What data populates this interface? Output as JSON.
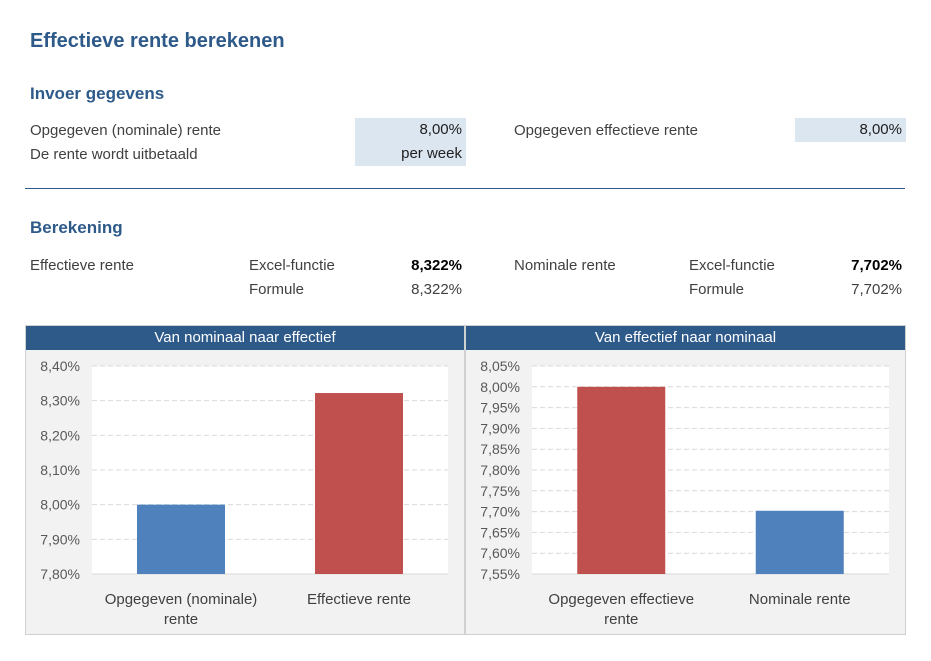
{
  "page": {
    "title": "Effectieve rente berekenen"
  },
  "invoer": {
    "heading": "Invoer gegevens",
    "nominale_label": "Opgegeven (nominale) rente",
    "nominale_value": "8,00%",
    "uitbetaald_label": "De rente wordt uitbetaald",
    "uitbetaald_value": "per week",
    "effectieve_label": "Opgegeven effectieve rente",
    "effectieve_value": "8,00%"
  },
  "berekening": {
    "heading": "Berekening",
    "left": {
      "label": "Effectieve rente",
      "excel_label": "Excel-functie",
      "excel_value": "8,322%",
      "formule_label": "Formule",
      "formule_value": "8,322%"
    },
    "right": {
      "label": "Nominale rente",
      "excel_label": "Excel-functie",
      "excel_value": "7,702%",
      "formule_label": "Formule",
      "formule_value": "7,702%"
    }
  },
  "colors": {
    "accent": "#2e5a8a",
    "bar_blue": "#4f81bd",
    "bar_red": "#c0504d",
    "input_bg": "#dce6f1"
  },
  "chart_data": [
    {
      "type": "bar",
      "title": "Van nominaal naar effectief",
      "categories": [
        "Opgegeven (nominale) rente",
        "Effectieve rente"
      ],
      "category_lines": [
        [
          "Opgegeven (nominale)",
          "rente"
        ],
        [
          "Effectieve rente"
        ]
      ],
      "values": [
        8.0,
        8.322
      ],
      "bar_colors": [
        "#4f81bd",
        "#c0504d"
      ],
      "ylim": [
        7.8,
        8.4
      ],
      "yticks": [
        7.8,
        7.9,
        8.0,
        8.1,
        8.2,
        8.3,
        8.4
      ],
      "ytick_labels": [
        "7,80%",
        "7,90%",
        "8,00%",
        "8,10%",
        "8,20%",
        "8,30%",
        "8,40%"
      ],
      "grid": true,
      "xlabel": "",
      "ylabel": ""
    },
    {
      "type": "bar",
      "title": "Van effectief naar nominaal",
      "categories": [
        "Opgegeven effectieve rente",
        "Nominale rente"
      ],
      "category_lines": [
        [
          "Opgegeven effectieve",
          "rente"
        ],
        [
          "Nominale rente"
        ]
      ],
      "values": [
        8.0,
        7.702
      ],
      "bar_colors": [
        "#c0504d",
        "#4f81bd"
      ],
      "ylim": [
        7.55,
        8.05
      ],
      "yticks": [
        7.55,
        7.6,
        7.65,
        7.7,
        7.75,
        7.8,
        7.85,
        7.9,
        7.95,
        8.0,
        8.05
      ],
      "ytick_labels": [
        "7,55%",
        "7,60%",
        "7,65%",
        "7,70%",
        "7,75%",
        "7,80%",
        "7,85%",
        "7,90%",
        "7,95%",
        "8,00%",
        "8,05%"
      ],
      "grid": true,
      "xlabel": "",
      "ylabel": ""
    }
  ]
}
